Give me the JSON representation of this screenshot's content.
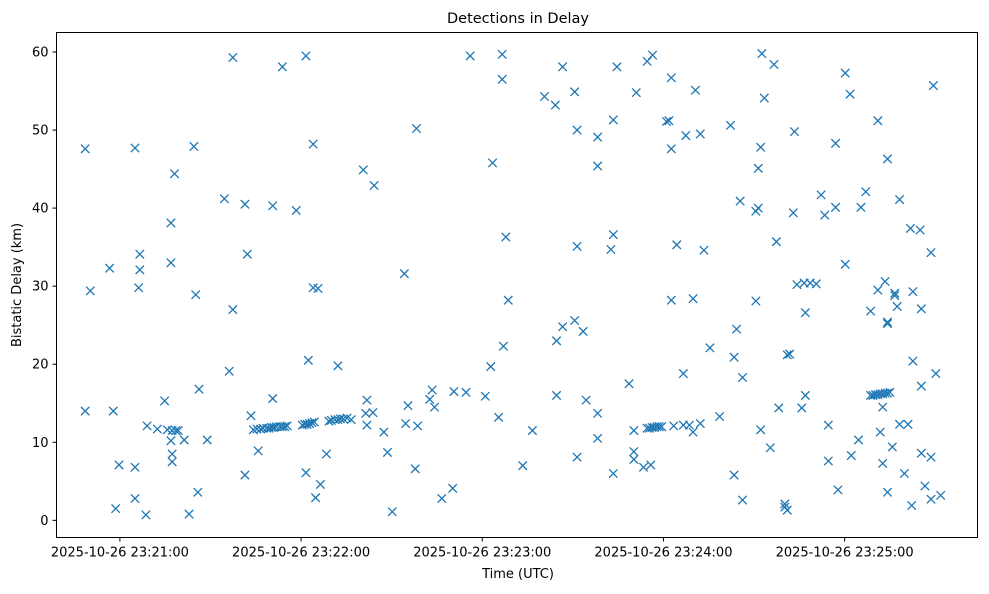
{
  "chart_data": {
    "type": "scatter",
    "title": "Detections in Delay",
    "xlabel": "Time (UTC)",
    "ylabel": "Bistatic Delay (km)",
    "x_unit": "seconds since 2025-10-26 23:20:00 UTC",
    "xlim": [
      39,
      344
    ],
    "ylim": [
      -2.2,
      62.5
    ],
    "x_ticks": [
      {
        "value": 60,
        "label": "2025-10-26 23:21:00"
      },
      {
        "value": 120,
        "label": "2025-10-26 23:22:00"
      },
      {
        "value": 180,
        "label": "2025-10-26 23:23:00"
      },
      {
        "value": 240,
        "label": "2025-10-26 23:24:00"
      },
      {
        "value": 300,
        "label": "2025-10-26 23:25:00"
      }
    ],
    "y_ticks": [
      {
        "value": 0,
        "label": "0"
      },
      {
        "value": 10,
        "label": "10"
      },
      {
        "value": 20,
        "label": "20"
      },
      {
        "value": 30,
        "label": "30"
      },
      {
        "value": 40,
        "label": "40"
      },
      {
        "value": 50,
        "label": "50"
      },
      {
        "value": 60,
        "label": "60"
      }
    ],
    "grid": false,
    "marker": "x",
    "series": [
      {
        "color": "#1f77b4",
        "points": [
          [
            48.5,
            47.6
          ],
          [
            48.5,
            14
          ],
          [
            50.2,
            29.4
          ],
          [
            56.6,
            32.3
          ],
          [
            57.8,
            14
          ],
          [
            58.6,
            1.5
          ],
          [
            59.7,
            7.1
          ],
          [
            65,
            2.8
          ],
          [
            65,
            6.8
          ],
          [
            65,
            47.7
          ],
          [
            66.2,
            29.8
          ],
          [
            66.6,
            32.1
          ],
          [
            66.6,
            34.1
          ],
          [
            68.6,
            0.7
          ],
          [
            69,
            12.1
          ],
          [
            72.4,
            11.7
          ],
          [
            74.8,
            15.3
          ],
          [
            75.7,
            11.6
          ],
          [
            76.9,
            10.2
          ],
          [
            76.9,
            33
          ],
          [
            76.9,
            38.1
          ],
          [
            77.3,
            11.5
          ],
          [
            77.3,
            8.5
          ],
          [
            77.3,
            7.5
          ],
          [
            78.1,
            44.4
          ],
          [
            78.5,
            11.5
          ],
          [
            79.3,
            11.5
          ],
          [
            81.3,
            10.3
          ],
          [
            82.9,
            0.8
          ],
          [
            84.5,
            47.9
          ],
          [
            85.1,
            28.9
          ],
          [
            85.8,
            3.6
          ],
          [
            86.2,
            16.8
          ],
          [
            88.9,
            10.3
          ],
          [
            94.6,
            41.2
          ],
          [
            96.2,
            19.1
          ],
          [
            97.4,
            27
          ],
          [
            97.4,
            59.3
          ],
          [
            101.4,
            5.8
          ],
          [
            101.4,
            40.5
          ],
          [
            102.2,
            34.1
          ],
          [
            103.4,
            13.4
          ],
          [
            104.2,
            11.6
          ],
          [
            105.8,
            8.9
          ],
          [
            105.4,
            11.7
          ],
          [
            106.6,
            11.7
          ],
          [
            107.4,
            11.8
          ],
          [
            108.6,
            11.8
          ],
          [
            109.4,
            11.8
          ],
          [
            110.2,
            11.9
          ],
          [
            111,
            11.9
          ],
          [
            111.8,
            12
          ],
          [
            113,
            12
          ],
          [
            113.8,
            12
          ],
          [
            114.6,
            12
          ],
          [
            115.4,
            12.1
          ],
          [
            110.6,
            40.3
          ],
          [
            110.6,
            15.6
          ],
          [
            113.8,
            58.1
          ],
          [
            118.4,
            39.7
          ],
          [
            120.4,
            12.2
          ],
          [
            121.2,
            12.3
          ],
          [
            122,
            12.3
          ],
          [
            122.8,
            12.4
          ],
          [
            123.6,
            12.5
          ],
          [
            124.4,
            12.6
          ],
          [
            121.6,
            6.1
          ],
          [
            121.6,
            59.5
          ],
          [
            122.4,
            20.5
          ],
          [
            124,
            48.2
          ],
          [
            124,
            29.8
          ],
          [
            124.8,
            2.9
          ],
          [
            125.6,
            29.7
          ],
          [
            126.4,
            4.6
          ],
          [
            128.4,
            8.5
          ],
          [
            129.2,
            12.7
          ],
          [
            130,
            12.8
          ],
          [
            131.2,
            12.9
          ],
          [
            132.2,
            12.9
          ],
          [
            133,
            13
          ],
          [
            132.2,
            19.8
          ],
          [
            134,
            13
          ],
          [
            135.2,
            13.1
          ],
          [
            136.6,
            12.9
          ],
          [
            140.6,
            44.9
          ],
          [
            141.4,
            13.7
          ],
          [
            141.8,
            12.2
          ],
          [
            141.8,
            15.4
          ],
          [
            143.8,
            13.8
          ],
          [
            144.2,
            42.9
          ],
          [
            147.4,
            11.3
          ],
          [
            148.6,
            8.7
          ],
          [
            150.2,
            1.1
          ],
          [
            154.2,
            31.6
          ],
          [
            154.6,
            12.4
          ],
          [
            155.4,
            14.7
          ],
          [
            157.8,
            6.6
          ],
          [
            158.6,
            12.1
          ],
          [
            158.2,
            50.2
          ],
          [
            162.6,
            15.5
          ],
          [
            163.4,
            16.7
          ],
          [
            164.2,
            14.5
          ],
          [
            166.6,
            2.8
          ],
          [
            170.2,
            4.1
          ],
          [
            170.6,
            16.5
          ],
          [
            174.6,
            16.4
          ],
          [
            176,
            59.5
          ],
          [
            181,
            15.9
          ],
          [
            182.8,
            19.7
          ],
          [
            183.4,
            45.8
          ],
          [
            185.4,
            13.2
          ],
          [
            186.6,
            59.7
          ],
          [
            186.6,
            56.5
          ],
          [
            187,
            22.3
          ],
          [
            187.8,
            36.3
          ],
          [
            188.6,
            28.2
          ],
          [
            193.4,
            7
          ],
          [
            196.6,
            11.5
          ],
          [
            200.6,
            54.3
          ],
          [
            204.2,
            53.2
          ],
          [
            204.6,
            16
          ],
          [
            204.6,
            23
          ],
          [
            206.6,
            58.1
          ],
          [
            206.6,
            24.8
          ],
          [
            210.6,
            54.9
          ],
          [
            210.6,
            25.6
          ],
          [
            211.4,
            35.1
          ],
          [
            211.4,
            8.1
          ],
          [
            211.4,
            50
          ],
          [
            213.4,
            24.2
          ],
          [
            214.4,
            15.4
          ],
          [
            218.2,
            45.4
          ],
          [
            218.2,
            49.1
          ],
          [
            218.2,
            13.7
          ],
          [
            218.2,
            10.5
          ],
          [
            222.6,
            34.7
          ],
          [
            223.4,
            51.3
          ],
          [
            223.4,
            6
          ],
          [
            223.4,
            36.6
          ],
          [
            224.6,
            58.1
          ],
          [
            228.6,
            17.5
          ],
          [
            230.2,
            11.5
          ],
          [
            230.2,
            8.8
          ],
          [
            230.2,
            7.8
          ],
          [
            231,
            54.8
          ],
          [
            233.4,
            6.8
          ],
          [
            234.6,
            58.8
          ],
          [
            234.6,
            11.8
          ],
          [
            235.4,
            11.8
          ],
          [
            236.2,
            11.9
          ],
          [
            237,
            11.9
          ],
          [
            237.8,
            12
          ],
          [
            235.8,
            7.1
          ],
          [
            236.4,
            59.6
          ],
          [
            238.6,
            12
          ],
          [
            239.4,
            12
          ],
          [
            241,
            51.1
          ],
          [
            241.8,
            51.2
          ],
          [
            242.6,
            47.6
          ],
          [
            242.6,
            56.7
          ],
          [
            243.4,
            12.1
          ],
          [
            244.4,
            35.3
          ],
          [
            242.6,
            28.2
          ],
          [
            246.6,
            18.8
          ],
          [
            246.6,
            12.2
          ],
          [
            247.4,
            49.3
          ],
          [
            248.6,
            12.2
          ],
          [
            249.8,
            28.4
          ],
          [
            249.8,
            11.3
          ],
          [
            250.6,
            55.1
          ],
          [
            252.2,
            12.4
          ],
          [
            252.2,
            49.5
          ],
          [
            253.4,
            34.6
          ],
          [
            255.4,
            22.1
          ],
          [
            258.6,
            13.3
          ],
          [
            262.2,
            50.6
          ],
          [
            263.4,
            20.9
          ],
          [
            263.4,
            5.8
          ],
          [
            264.2,
            24.5
          ],
          [
            265.4,
            40.9
          ],
          [
            266.2,
            2.6
          ],
          [
            266.2,
            18.3
          ],
          [
            270.6,
            28.1
          ],
          [
            270.6,
            39.6
          ],
          [
            271.4,
            40
          ],
          [
            271.4,
            45.1
          ],
          [
            272.2,
            47.8
          ],
          [
            272.2,
            11.6
          ],
          [
            272.6,
            59.8
          ],
          [
            273.4,
            54.1
          ],
          [
            275.4,
            9.3
          ],
          [
            276.6,
            58.4
          ],
          [
            277.4,
            35.7
          ],
          [
            278.2,
            14.4
          ],
          [
            280.2,
            1.7
          ],
          [
            280.2,
            2.1
          ],
          [
            281,
            1.3
          ],
          [
            281,
            21.2
          ],
          [
            281.8,
            21.3
          ],
          [
            283,
            39.4
          ],
          [
            283.4,
            49.8
          ],
          [
            284.2,
            30.2
          ],
          [
            285.8,
            14.4
          ],
          [
            286.6,
            30.4
          ],
          [
            287,
            16
          ],
          [
            287,
            26.6
          ],
          [
            288.6,
            30.4
          ],
          [
            290.6,
            30.3
          ],
          [
            292.2,
            41.7
          ],
          [
            293.4,
            39.1
          ],
          [
            294.6,
            12.2
          ],
          [
            294.6,
            7.6
          ],
          [
            297,
            40.1
          ],
          [
            297,
            48.3
          ],
          [
            297.8,
            3.9
          ],
          [
            300.2,
            32.8
          ],
          [
            300.2,
            57.3
          ],
          [
            301.8,
            54.6
          ],
          [
            302.2,
            8.3
          ],
          [
            304.6,
            10.3
          ],
          [
            305.4,
            40.1
          ],
          [
            307,
            42.1
          ],
          [
            308.6,
            26.8
          ],
          [
            308.6,
            16
          ],
          [
            309.4,
            16
          ],
          [
            310.2,
            16.1
          ],
          [
            311,
            16.1
          ],
          [
            311,
            51.2
          ],
          [
            311,
            29.5
          ],
          [
            311.8,
            11.3
          ],
          [
            311.8,
            16.2
          ],
          [
            312.6,
            16.2
          ],
          [
            312.6,
            7.3
          ],
          [
            312.6,
            14.5
          ],
          [
            313.4,
            16.3
          ],
          [
            313.4,
            30.6
          ],
          [
            314.2,
            16.3
          ],
          [
            314.2,
            25.2
          ],
          [
            314.2,
            25.4
          ],
          [
            314.2,
            46.3
          ],
          [
            314.2,
            3.6
          ],
          [
            315,
            16.4
          ],
          [
            315.8,
            9.4
          ],
          [
            316.6,
            29.1
          ],
          [
            316.6,
            28.8
          ],
          [
            317.4,
            27.4
          ],
          [
            318.2,
            41.1
          ],
          [
            318.2,
            12.3
          ],
          [
            319.8,
            6
          ],
          [
            321,
            12.3
          ],
          [
            321.8,
            37.4
          ],
          [
            322.2,
            1.9
          ],
          [
            322.6,
            29.3
          ],
          [
            322.6,
            20.4
          ],
          [
            325,
            37.2
          ],
          [
            325.4,
            8.6
          ],
          [
            325.4,
            27.1
          ],
          [
            325.4,
            17.2
          ],
          [
            326.6,
            4.4
          ],
          [
            328.6,
            8.1
          ],
          [
            328.6,
            34.3
          ],
          [
            328.6,
            2.7
          ],
          [
            329.4,
            55.7
          ],
          [
            330.2,
            18.8
          ],
          [
            331.8,
            3.2
          ]
        ]
      }
    ]
  }
}
